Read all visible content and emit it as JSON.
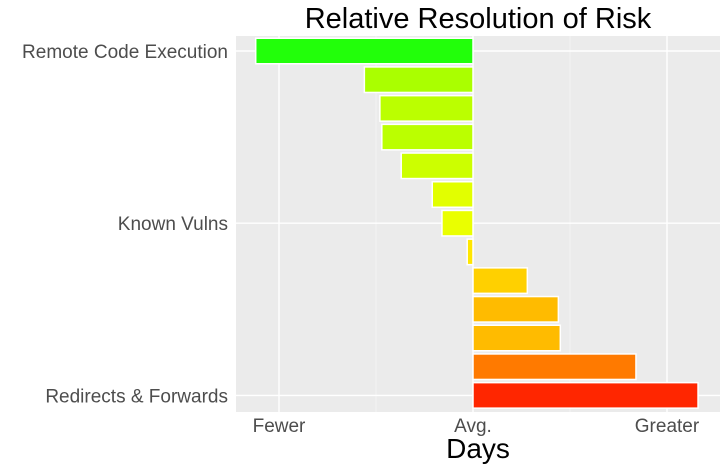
{
  "chart_data": {
    "type": "bar",
    "orientation": "horizontal",
    "title": "Relative Resolution of Risk",
    "xlabel": "Days",
    "ylabel": "",
    "xlim": [
      -1.0,
      1.05
    ],
    "x_ticks": [
      {
        "label": "Fewer",
        "value": -1.0
      },
      {
        "label": "Avg.",
        "value": 0
      },
      {
        "label": "Greater",
        "value": 1.0
      }
    ],
    "y_tick_labels": [
      {
        "label": "Remote Code Execution",
        "index": 0
      },
      {
        "label": "Known Vulns",
        "index": 6
      },
      {
        "label": "Redirects & Forwards",
        "index": 12
      }
    ],
    "grid": true,
    "legend": "none",
    "bars": [
      {
        "value": -1.12,
        "color": "#22ff0a"
      },
      {
        "value": -0.56,
        "color": "#aaff00"
      },
      {
        "value": -0.48,
        "color": "#bbff00"
      },
      {
        "value": -0.47,
        "color": "#bbff00"
      },
      {
        "value": -0.37,
        "color": "#ccff00"
      },
      {
        "value": -0.21,
        "color": "#e2ff00"
      },
      {
        "value": -0.16,
        "color": "#eaff00"
      },
      {
        "value": -0.03,
        "color": "#ffe600"
      },
      {
        "value": 0.28,
        "color": "#ffd000"
      },
      {
        "value": 0.44,
        "color": "#ffbb00"
      },
      {
        "value": 0.45,
        "color": "#ffbb00"
      },
      {
        "value": 0.84,
        "color": "#ff7a00"
      },
      {
        "value": 1.16,
        "color": "#ff2600"
      }
    ]
  }
}
